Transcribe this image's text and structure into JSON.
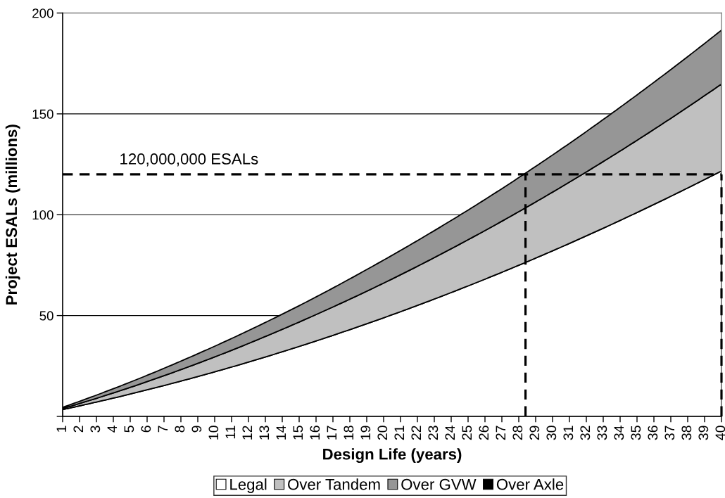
{
  "chart_data": {
    "type": "area",
    "stacked": true,
    "xlabel": "Design Life (years)",
    "ylabel": "Project ESALs (millions)",
    "x": [
      1,
      5,
      10,
      15,
      20,
      25,
      30,
      35,
      40
    ],
    "series": [
      {
        "name": "Legal",
        "color": "#ffffff",
        "values": [
          3.4,
          11.1,
          22.1,
          34.7,
          48.9,
          64.7,
          82.1,
          101.1,
          121.7
        ]
      },
      {
        "name": "Over Tandem",
        "color": "#c0c0c0",
        "values": [
          0.5,
          3.3,
          7.4,
          12.1,
          17.2,
          22.9,
          29.1,
          35.8,
          43.1
        ]
      },
      {
        "name": "Over GVW",
        "color": "#969696",
        "values": [
          0.6,
          2.6,
          5.3,
          8.1,
          11.4,
          14.7,
          18.4,
          22.5,
          26.7
        ]
      },
      {
        "name": "Over Axle",
        "color": "#000000",
        "values": [
          null,
          null,
          null,
          null,
          null,
          null,
          null,
          null,
          null
        ]
      }
    ],
    "xlim": [
      1,
      40
    ],
    "xticks": [
      1,
      2,
      3,
      4,
      5,
      6,
      7,
      8,
      9,
      10,
      11,
      12,
      13,
      14,
      15,
      16,
      17,
      18,
      19,
      20,
      21,
      22,
      23,
      24,
      25,
      26,
      27,
      28,
      29,
      30,
      31,
      32,
      33,
      34,
      35,
      36,
      37,
      38,
      39,
      40
    ],
    "ylim": [
      0,
      200
    ],
    "yticks": [
      {
        "value": 0,
        "label": null
      },
      50,
      100,
      150,
      200
    ],
    "ref_lines": [
      {
        "axis": "y",
        "value": 120,
        "label": "120,000,000 ESALs",
        "color": "#000000",
        "line_style": "dashed"
      },
      {
        "axis": "x",
        "value": 28.4,
        "color": "#000000",
        "line_style": "dashed"
      },
      {
        "axis": "x",
        "value": 40,
        "color": "#000000",
        "line_style": "dashed"
      }
    ],
    "grid": "y",
    "legend": "bottom"
  }
}
